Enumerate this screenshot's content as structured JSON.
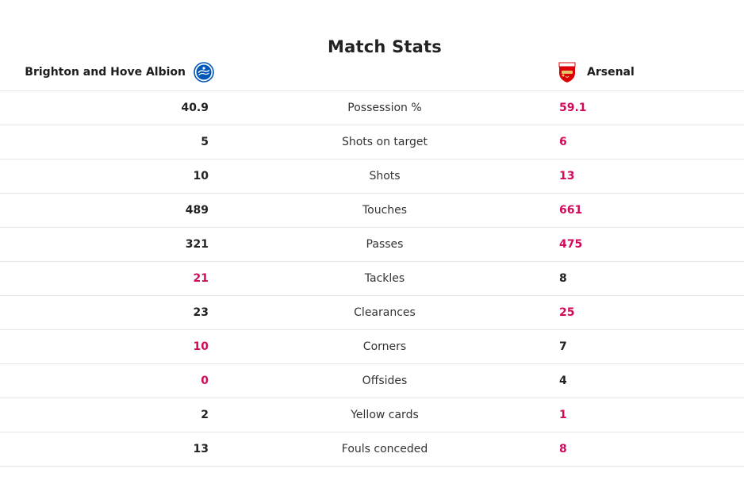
{
  "title": "Match Stats",
  "home": {
    "name": "Brighton and Hove Albion",
    "badge_icon": "brighton-crest-icon",
    "badge_color": "#0057b8"
  },
  "away": {
    "name": "Arsenal",
    "badge_icon": "arsenal-crest-icon",
    "badge_color": "#db0007"
  },
  "highlight_color": "#d20a5a",
  "stats": [
    {
      "label": "Possession %",
      "home": "40.9",
      "away": "59.1",
      "leader": "away"
    },
    {
      "label": "Shots on target",
      "home": "5",
      "away": "6",
      "leader": "away"
    },
    {
      "label": "Shots",
      "home": "10",
      "away": "13",
      "leader": "away"
    },
    {
      "label": "Touches",
      "home": "489",
      "away": "661",
      "leader": "away"
    },
    {
      "label": "Passes",
      "home": "321",
      "away": "475",
      "leader": "away"
    },
    {
      "label": "Tackles",
      "home": "21",
      "away": "8",
      "leader": "home"
    },
    {
      "label": "Clearances",
      "home": "23",
      "away": "25",
      "leader": "away"
    },
    {
      "label": "Corners",
      "home": "10",
      "away": "7",
      "leader": "home"
    },
    {
      "label": "Offsides",
      "home": "0",
      "away": "4",
      "leader": "home"
    },
    {
      "label": "Yellow cards",
      "home": "2",
      "away": "1",
      "leader": "away"
    },
    {
      "label": "Fouls conceded",
      "home": "13",
      "away": "8",
      "leader": "away"
    }
  ]
}
